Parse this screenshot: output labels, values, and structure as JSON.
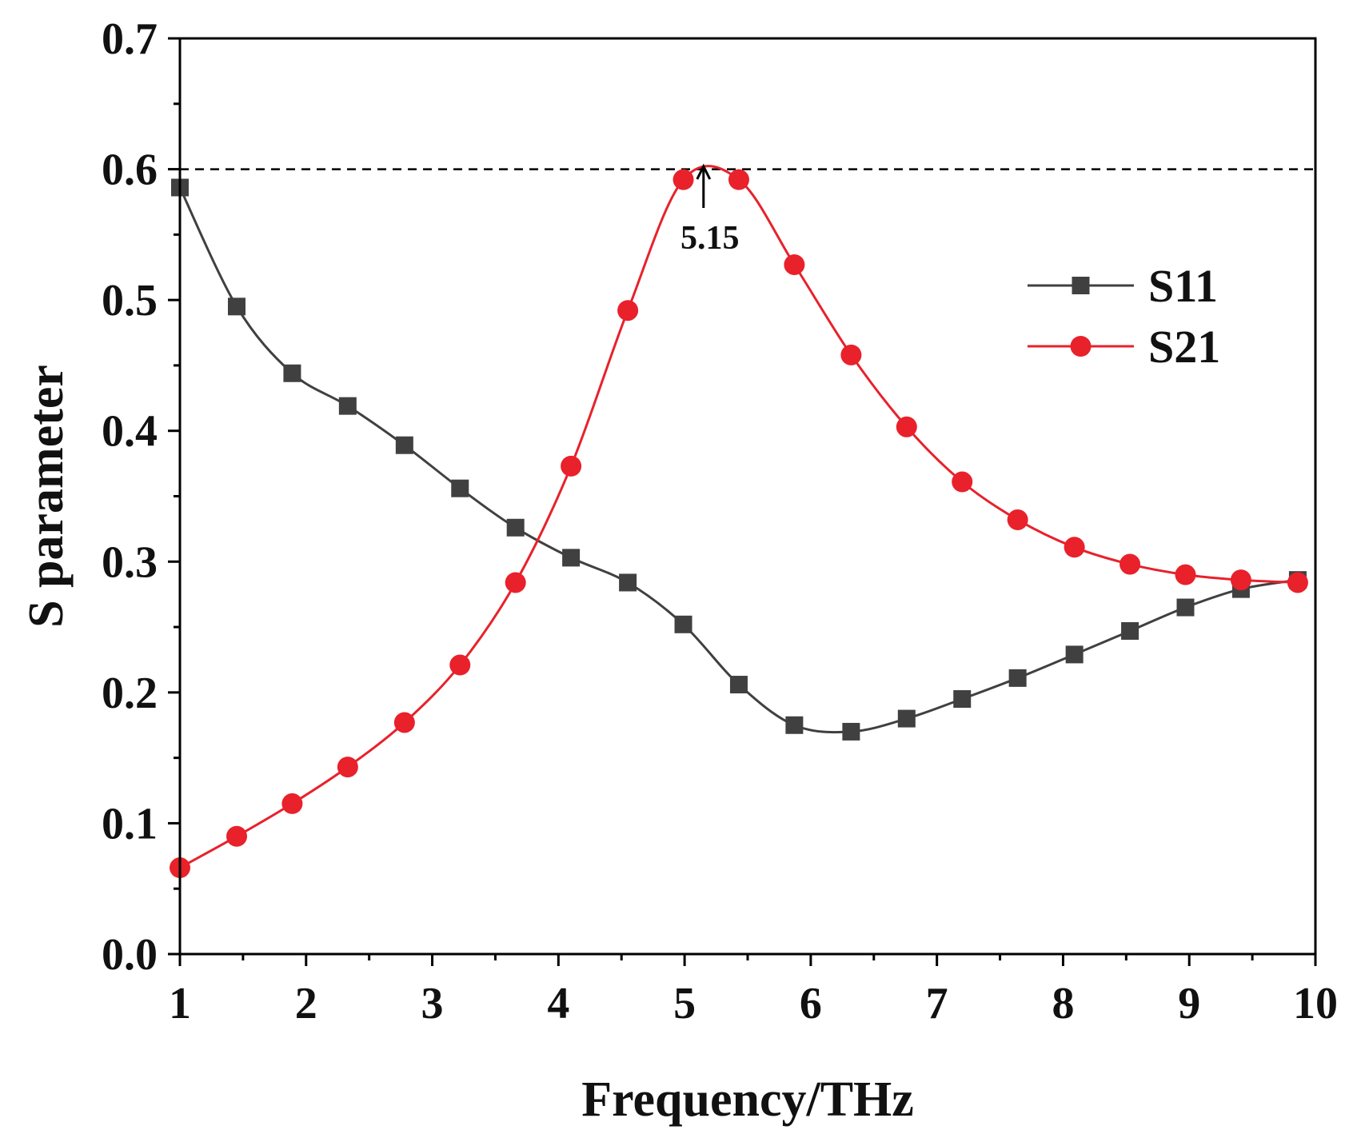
{
  "chart_data": {
    "type": "line",
    "title": "",
    "xlabel": "Frequency/THz",
    "ylabel": "S parameter",
    "xlim": [
      1,
      10
    ],
    "ylim": [
      0.0,
      0.7
    ],
    "xticks": [
      1,
      2,
      3,
      4,
      5,
      6,
      7,
      8,
      9,
      10
    ],
    "xtick_labels": [
      "1",
      "2",
      "3",
      "4",
      "5",
      "6",
      "7",
      "8",
      "9",
      "10"
    ],
    "yticks": [
      0.0,
      0.1,
      0.2,
      0.3,
      0.4,
      0.5,
      0.6,
      0.7
    ],
    "ytick_labels": [
      "0.0",
      "0.1",
      "0.2",
      "0.3",
      "0.4",
      "0.5",
      "0.6",
      "0.7"
    ],
    "grid": false,
    "legend_position": "top-right",
    "series": [
      {
        "name": "S11",
        "color": "#404040",
        "marker": "square",
        "x": [
          1.0,
          1.45,
          1.89,
          2.33,
          2.78,
          3.22,
          3.66,
          4.1,
          4.55,
          4.99,
          5.43,
          5.87,
          6.32,
          6.76,
          7.2,
          7.64,
          8.09,
          8.53,
          8.97,
          9.41,
          9.86
        ],
        "y": [
          0.586,
          0.495,
          0.444,
          0.419,
          0.389,
          0.356,
          0.326,
          0.303,
          0.284,
          0.252,
          0.206,
          0.175,
          0.17,
          0.18,
          0.195,
          0.211,
          0.229,
          0.247,
          0.265,
          0.279,
          0.286
        ]
      },
      {
        "name": "S21",
        "color": "#e8212b",
        "marker": "circle",
        "x": [
          1.0,
          1.45,
          1.89,
          2.33,
          2.78,
          3.22,
          3.66,
          4.1,
          4.55,
          4.99,
          5.43,
          5.87,
          6.32,
          6.76,
          7.2,
          7.64,
          8.09,
          8.53,
          8.97,
          9.41,
          9.86
        ],
        "y": [
          0.066,
          0.09,
          0.115,
          0.143,
          0.177,
          0.221,
          0.284,
          0.373,
          0.492,
          0.592,
          0.592,
          0.527,
          0.458,
          0.403,
          0.361,
          0.332,
          0.311,
          0.298,
          0.29,
          0.286,
          0.284
        ]
      }
    ],
    "reference_line": {
      "y": 0.6,
      "style": "dashed"
    },
    "annotation": {
      "text": "5.15",
      "x": 5.15,
      "y": 0.604
    }
  }
}
